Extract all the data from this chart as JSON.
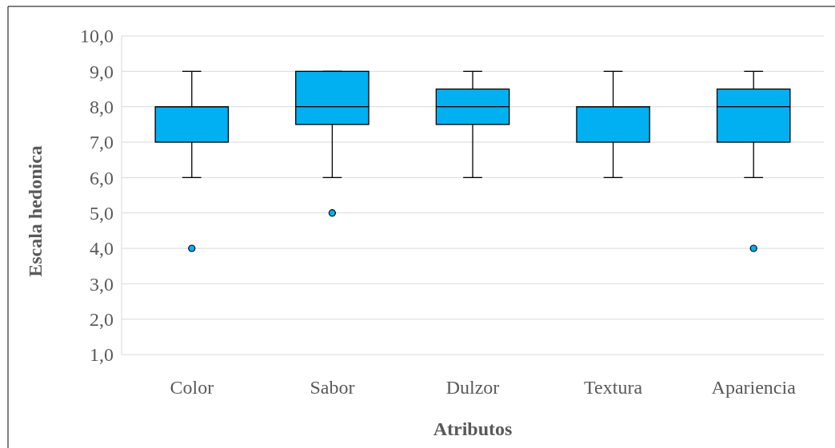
{
  "chart_data": {
    "type": "box",
    "xlabel": "Atributos",
    "ylabel": "Escala hedonica",
    "categories": [
      "Color",
      "Sabor",
      "Dulzor",
      "Textura",
      "Apariencia"
    ],
    "color": "#00b0f0",
    "boxes": [
      {
        "low": 6,
        "q1": 7,
        "median": 8,
        "q3": 8,
        "high": 9,
        "outliers": [
          4
        ]
      },
      {
        "low": 6,
        "q1": 7.5,
        "median": 8,
        "q3": 9,
        "high": 9,
        "outliers": [
          5
        ]
      },
      {
        "low": 6,
        "q1": 7.5,
        "median": 8,
        "q3": 8.5,
        "high": 9
      },
      {
        "low": 6,
        "q1": 7,
        "median": 8,
        "q3": 8,
        "high": 9
      },
      {
        "low": 6,
        "q1": 7,
        "median": 8,
        "q3": 8.5,
        "high": 9,
        "outliers": [
          4
        ]
      }
    ],
    "ylim": [
      1,
      10
    ],
    "yticks": [
      {
        "value": 1,
        "label": "1,0"
      },
      {
        "value": 2,
        "label": "2,0"
      },
      {
        "value": 3,
        "label": "3,0"
      },
      {
        "value": 4,
        "label": "4,0"
      },
      {
        "value": 5,
        "label": "5,0"
      },
      {
        "value": 6,
        "label": "6,0"
      },
      {
        "value": 7,
        "label": "7,0"
      },
      {
        "value": 8,
        "label": "8,0"
      },
      {
        "value": 9,
        "label": "9,0"
      },
      {
        "value": 10,
        "label": "10,0"
      }
    ],
    "grid": "y"
  }
}
